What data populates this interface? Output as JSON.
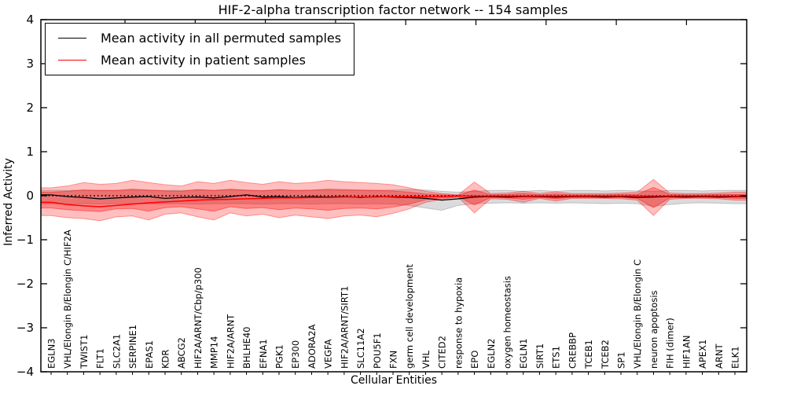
{
  "title": "HIF-2-alpha transcription factor network -- 154 samples",
  "legend": {
    "items": [
      {
        "label": "Mean activity in all permuted samples",
        "color": "#000000"
      },
      {
        "label": "Mean activity in patient samples",
        "color": "#ff0000"
      }
    ]
  },
  "chart_data": {
    "type": "line",
    "title": "HIF-2-alpha transcription factor network -- 154 samples",
    "xlabel": "Cellular Entities",
    "ylabel": "Inferred Activity",
    "ylim": [
      -4,
      4
    ],
    "yticks": [
      4,
      3,
      2,
      1,
      0,
      -1,
      -2,
      -3,
      -4
    ],
    "grid": false,
    "legend_position": "upper left",
    "zero_line": {
      "value": 0,
      "style": "dotted",
      "color": "#000000"
    },
    "categories": [
      "EGLN3",
      "VHL/Elongin B/Elongin C/HIF2A",
      "TWIST1",
      "FLT1",
      "SLC2A1",
      "SERPINE1",
      "EPAS1",
      "KDR",
      "ABCG2",
      "HIF2A/ARNT/Cbp/p300",
      "MMP14",
      "HIF2A/ARNT",
      "BHLHE40",
      "EFNA1",
      "PGK1",
      "EP300",
      "ADORA2A",
      "VEGFA",
      "HIF2A/ARNT/SIRT1",
      "SLC11A2",
      "POU5F1",
      "FXN",
      "germ cell development",
      "VHL",
      "CITED2",
      "response to hypoxia",
      "EPO",
      "EGLN2",
      "oxygen homeostasis",
      "EGLN1",
      "SIRT1",
      "ETS1",
      "CREBBP",
      "TCEB1",
      "TCEB2",
      "SP1",
      "VHL/Elongin B/Elongin C",
      "neuron apoptosis",
      "FIH (dimer)",
      "HIF1AN",
      "APEX1",
      "ARNT",
      "ELK1"
    ],
    "series": [
      {
        "name": "Mean activity in all permuted samples",
        "color": "#000000",
        "style": "solid",
        "values": [
          0.02,
          -0.02,
          -0.04,
          -0.07,
          -0.05,
          -0.03,
          -0.02,
          -0.06,
          -0.04,
          -0.03,
          -0.05,
          -0.02,
          0.02,
          -0.03,
          -0.02,
          -0.04,
          -0.02,
          -0.03,
          -0.02,
          -0.04,
          -0.02,
          -0.03,
          -0.04,
          -0.06,
          -0.1,
          -0.07,
          -0.03,
          -0.02,
          -0.03,
          -0.02,
          -0.02,
          -0.03,
          -0.02,
          -0.02,
          -0.03,
          -0.02,
          -0.04,
          -0.03,
          -0.02,
          -0.03,
          -0.02,
          -0.03,
          -0.02
        ]
      },
      {
        "name": "Mean activity in patient samples",
        "color": "#ff0000",
        "style": "solid",
        "values": [
          -0.15,
          -0.2,
          -0.23,
          -0.25,
          -0.22,
          -0.19,
          -0.16,
          -0.14,
          -0.12,
          -0.1,
          -0.09,
          -0.08,
          -0.07,
          -0.06,
          -0.05,
          -0.05,
          -0.04,
          -0.04,
          -0.03,
          -0.03,
          -0.03,
          -0.02,
          -0.02,
          -0.02,
          -0.02,
          -0.01,
          -0.01,
          -0.01,
          -0.01,
          -0.01,
          -0.01,
          -0.01,
          -0.01,
          -0.01,
          -0.01,
          -0.01,
          -0.01,
          -0.01,
          -0.01,
          -0.01,
          -0.01,
          -0.01,
          -0.01
        ]
      }
    ],
    "bands": [
      {
        "name": "permuted-samples-range",
        "color": "#7f7f7f",
        "opacity": 0.28,
        "upper": [
          0.12,
          0.12,
          0.13,
          0.12,
          0.12,
          0.13,
          0.12,
          0.12,
          0.12,
          0.13,
          0.12,
          0.13,
          0.12,
          0.12,
          0.13,
          0.12,
          0.12,
          0.13,
          0.12,
          0.12,
          0.12,
          0.13,
          0.14,
          0.13,
          0.1,
          0.08,
          0.1,
          0.12,
          0.12,
          0.1,
          0.12,
          0.1,
          0.12,
          0.12,
          0.11,
          0.12,
          0.11,
          0.1,
          0.12,
          0.12,
          0.11,
          0.12,
          0.12
        ],
        "lower": [
          -0.18,
          -0.19,
          -0.18,
          -0.19,
          -0.18,
          -0.18,
          -0.19,
          -0.18,
          -0.18,
          -0.19,
          -0.18,
          -0.18,
          -0.18,
          -0.19,
          -0.18,
          -0.18,
          -0.19,
          -0.18,
          -0.18,
          -0.19,
          -0.18,
          -0.19,
          -0.22,
          -0.28,
          -0.33,
          -0.22,
          -0.18,
          -0.17,
          -0.16,
          -0.17,
          -0.16,
          -0.17,
          -0.16,
          -0.17,
          -0.18,
          -0.17,
          -0.18,
          -0.24,
          -0.2,
          -0.17,
          -0.16,
          -0.17,
          -0.18
        ]
      },
      {
        "name": "patient-samples-range-outer",
        "color": "#ff0000",
        "opacity": 0.25,
        "upper": [
          0.18,
          0.22,
          0.3,
          0.26,
          0.28,
          0.35,
          0.3,
          0.25,
          0.22,
          0.32,
          0.28,
          0.35,
          0.3,
          0.26,
          0.32,
          0.28,
          0.3,
          0.35,
          0.32,
          0.3,
          0.28,
          0.25,
          0.18,
          0.1,
          0.05,
          0.02,
          0.31,
          0.05,
          0.06,
          0.1,
          0.05,
          0.09,
          0.05,
          0.05,
          0.05,
          0.06,
          0.08,
          0.37,
          0.06,
          0.05,
          0.05,
          0.06,
          0.08
        ],
        "lower": [
          -0.45,
          -0.5,
          -0.52,
          -0.57,
          -0.48,
          -0.46,
          -0.55,
          -0.42,
          -0.39,
          -0.48,
          -0.55,
          -0.39,
          -0.46,
          -0.42,
          -0.5,
          -0.44,
          -0.48,
          -0.52,
          -0.46,
          -0.44,
          -0.48,
          -0.4,
          -0.3,
          -0.15,
          -0.08,
          -0.03,
          -0.39,
          -0.07,
          -0.08,
          -0.15,
          -0.06,
          -0.12,
          -0.06,
          -0.06,
          -0.06,
          -0.07,
          -0.1,
          -0.45,
          -0.08,
          -0.06,
          -0.06,
          -0.07,
          -0.1
        ]
      },
      {
        "name": "patient-samples-range-inner",
        "color": "#ff0000",
        "opacity": 0.3,
        "upper": [
          0.08,
          0.1,
          0.13,
          0.12,
          0.12,
          0.15,
          0.13,
          0.11,
          0.1,
          0.14,
          0.12,
          0.15,
          0.13,
          0.11,
          0.14,
          0.12,
          0.13,
          0.15,
          0.14,
          0.13,
          0.12,
          0.11,
          0.08,
          0.04,
          0.02,
          0.01,
          0.13,
          0.02,
          0.03,
          0.05,
          0.02,
          0.04,
          0.02,
          0.02,
          0.02,
          0.03,
          0.03,
          0.19,
          0.03,
          0.02,
          0.02,
          0.03,
          0.03
        ],
        "lower": [
          -0.28,
          -0.32,
          -0.34,
          -0.36,
          -0.3,
          -0.29,
          -0.35,
          -0.27,
          -0.25,
          -0.3,
          -0.35,
          -0.25,
          -0.29,
          -0.27,
          -0.32,
          -0.28,
          -0.3,
          -0.33,
          -0.29,
          -0.28,
          -0.3,
          -0.26,
          -0.19,
          -0.09,
          -0.05,
          -0.02,
          -0.21,
          -0.04,
          -0.05,
          -0.08,
          -0.04,
          -0.07,
          -0.04,
          -0.04,
          -0.04,
          -0.04,
          -0.06,
          -0.27,
          -0.05,
          -0.04,
          -0.04,
          -0.04,
          -0.06
        ]
      }
    ]
  }
}
